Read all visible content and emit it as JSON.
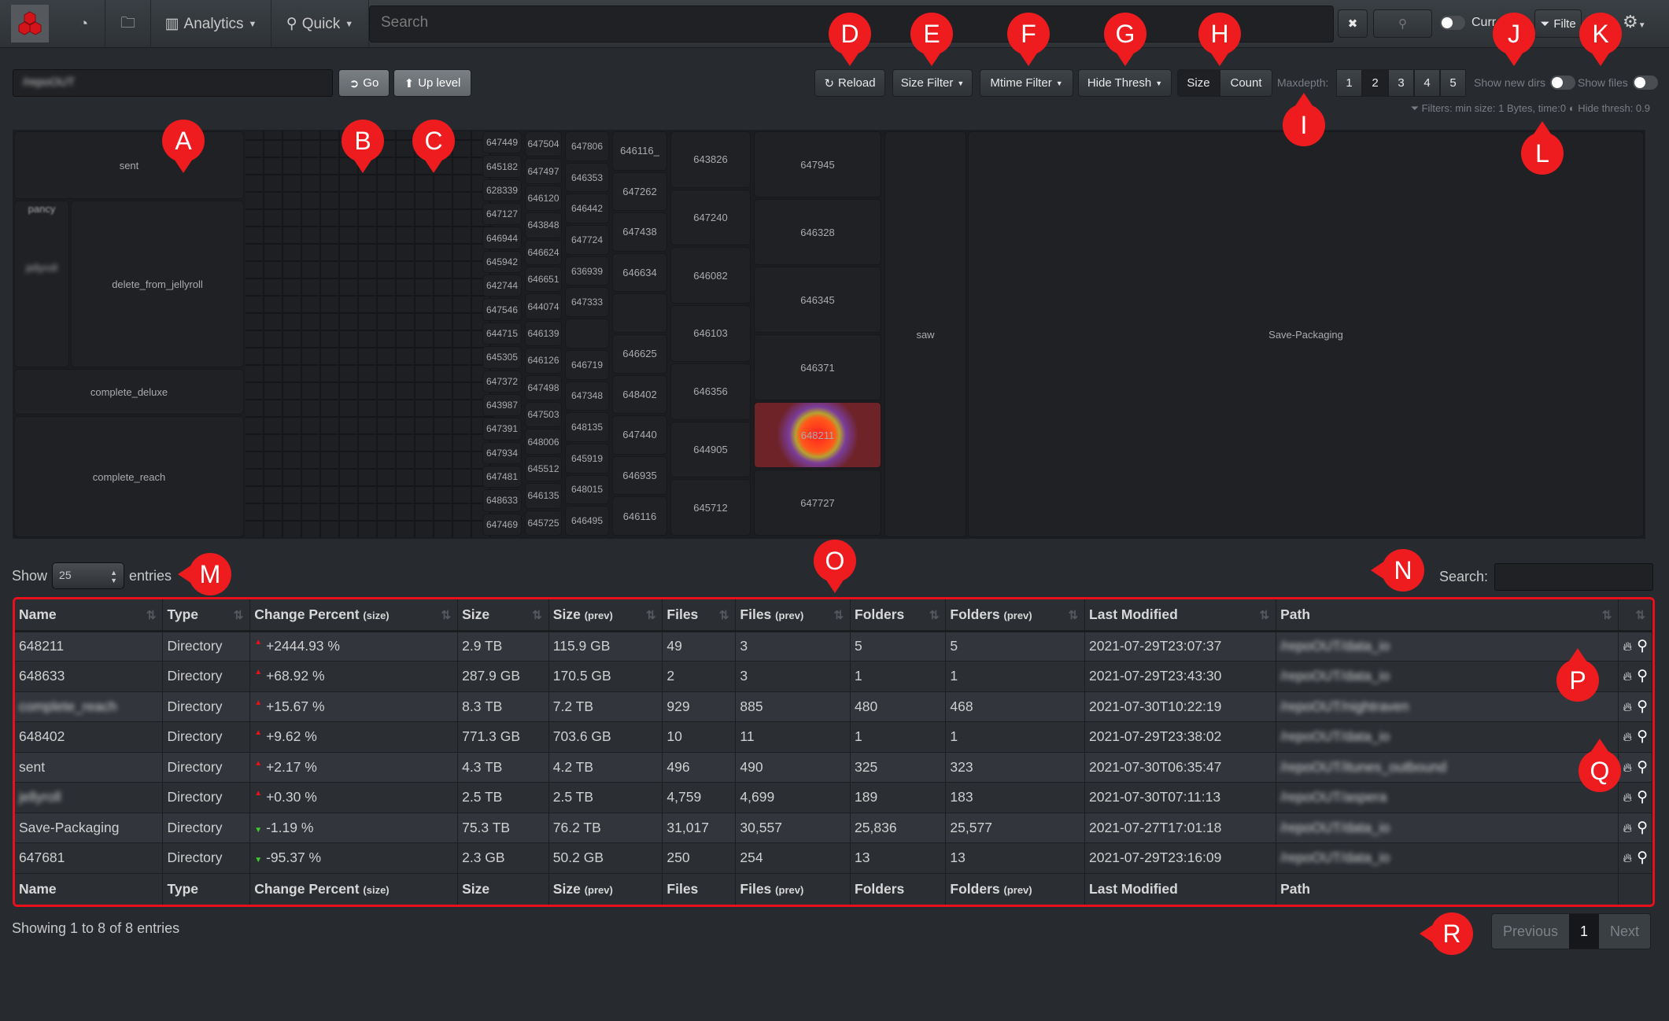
{
  "nav": {
    "analytics": "Analytics",
    "quick": "Quick",
    "search_placeholder": "Search",
    "current_label": "Curr",
    "filter_label": "Filte"
  },
  "toolbar": {
    "path_value": "/repoOUT",
    "go": "Go",
    "up_level": "Up level",
    "reload": "Reload",
    "size_filter": "Size Filter",
    "mtime_filter": "Mtime Filter",
    "hide_thresh": "Hide Thresh",
    "size": "Size",
    "count": "Count",
    "size_selected": true,
    "maxdepth_label": "Maxdepth:",
    "depths": [
      "1",
      "2",
      "3",
      "4",
      "5"
    ],
    "depth_selected": "2",
    "show_new_dirs": "Show new dirs",
    "show_files": "Show files",
    "filters_info": "Filters: min size: 1 Bytes, time:0",
    "hide_thresh_info": "Hide thresh: 0.9"
  },
  "treemap": {
    "left": {
      "sent": "sent",
      "pancy": "pancy",
      "jellyroll": "jellyroll",
      "delete_from": "delete_from_jellyroll",
      "complete_deluxe": "complete_deluxe",
      "complete_reach": "complete_reach"
    },
    "columns": [
      [
        "647449",
        "645182",
        "628339",
        "647127",
        "646944",
        "645942",
        "642744",
        "647546",
        "644715",
        "645305",
        "647372",
        "643987",
        "647391",
        "647934",
        "647481",
        "648633",
        "647469"
      ],
      [
        "647504",
        "647497",
        "646120",
        "643848",
        "646624",
        "646651",
        "644074",
        "646139",
        "646126",
        "647498",
        "647503",
        "648006",
        "645512",
        "646135",
        "645725"
      ],
      [
        "647806",
        "646353",
        "646442",
        "647724",
        "636939",
        "647333",
        "",
        "646719",
        "647348",
        "648135",
        "645919",
        "648015",
        "646495"
      ],
      [
        "646116_",
        "647262",
        "647438",
        "646634",
        "",
        "646625",
        "648402",
        "647440",
        "646935",
        "646116"
      ],
      [
        "643826",
        "647240",
        "646082",
        "646103",
        "646356",
        "644905",
        "645712"
      ],
      [
        "647945",
        "646328",
        "646345",
        "646371",
        "648211",
        "647727"
      ]
    ],
    "highlighted": "648211",
    "saw": "saw",
    "save_packaging": "Save-Packaging"
  },
  "table": {
    "show": "Show",
    "entries_value": "25",
    "entries": "entries",
    "search_label": "Search:",
    "headers": [
      {
        "t": "Name"
      },
      {
        "t": "Type"
      },
      {
        "t": "Change Percent",
        "s": "(size)"
      },
      {
        "t": "Size"
      },
      {
        "t": "Size",
        "s": "(prev)"
      },
      {
        "t": "Files"
      },
      {
        "t": "Files",
        "s": "(prev)"
      },
      {
        "t": "Folders"
      },
      {
        "t": "Folders",
        "s": "(prev)"
      },
      {
        "t": "Last Modified"
      },
      {
        "t": "Path"
      }
    ],
    "rows": [
      {
        "name": "648211",
        "type": "Directory",
        "dir": "up",
        "change": "+2444.93 %",
        "size": "2.9 TB",
        "size_prev": "115.9 GB",
        "files": "49",
        "files_prev": "3",
        "folders": "5",
        "folders_prev": "5",
        "modified": "2021-07-29T23:07:37",
        "path": "/repoOUT/data_io"
      },
      {
        "name": "648633",
        "type": "Directory",
        "dir": "up",
        "change": "+68.92 %",
        "size": "287.9 GB",
        "size_prev": "170.5 GB",
        "files": "2",
        "files_prev": "3",
        "folders": "1",
        "folders_prev": "1",
        "modified": "2021-07-29T23:43:30",
        "path": "/repoOUT/data_io"
      },
      {
        "name": "complete_reach",
        "blur": true,
        "type": "Directory",
        "dir": "up",
        "change": "+15.67 %",
        "size": "8.3 TB",
        "size_prev": "7.2 TB",
        "files": "929",
        "files_prev": "885",
        "folders": "480",
        "folders_prev": "468",
        "modified": "2021-07-30T10:22:19",
        "path": "/repoOUT/nightraven"
      },
      {
        "name": "648402",
        "type": "Directory",
        "dir": "up",
        "change": "+9.62 %",
        "size": "771.3 GB",
        "size_prev": "703.6 GB",
        "files": "10",
        "files_prev": "11",
        "folders": "1",
        "folders_prev": "1",
        "modified": "2021-07-29T23:38:02",
        "path": "/repoOUT/data_io"
      },
      {
        "name": "sent",
        "type": "Directory",
        "dir": "up",
        "change": "+2.17 %",
        "size": "4.3 TB",
        "size_prev": "4.2 TB",
        "files": "496",
        "files_prev": "490",
        "folders": "325",
        "folders_prev": "323",
        "modified": "2021-07-30T06:35:47",
        "path": "/repoOUT/itunes_outbound"
      },
      {
        "name": "jellyroll",
        "blur": true,
        "type": "Directory",
        "dir": "up",
        "change": "+0.30 %",
        "size": "2.5 TB",
        "size_prev": "2.5 TB",
        "files": "4,759",
        "files_prev": "4,699",
        "folders": "189",
        "folders_prev": "183",
        "modified": "2021-07-30T07:11:13",
        "path": "/repoOUT/aspera"
      },
      {
        "name": "Save-Packaging",
        "type": "Directory",
        "dir": "down",
        "change": "-1.19 %",
        "size": "75.3 TB",
        "size_prev": "76.2 TB",
        "files": "31,017",
        "files_prev": "30,557",
        "folders": "25,836",
        "folders_prev": "25,577",
        "modified": "2021-07-27T17:01:18",
        "path": "/repoOUT/data_io"
      },
      {
        "name": "647681",
        "type": "Directory",
        "dir": "down",
        "change": "-95.37 %",
        "size": "2.3 GB",
        "size_prev": "50.2 GB",
        "files": "250",
        "files_prev": "254",
        "folders": "13",
        "folders_prev": "13",
        "modified": "2021-07-29T23:16:09",
        "path": "/repoOUT/data_io"
      }
    ],
    "info": "Showing 1 to 8 of 8 entries",
    "pager": {
      "previous": "Previous",
      "page": "1",
      "next": "Next"
    }
  },
  "annotations": [
    "A",
    "B",
    "C",
    "D",
    "E",
    "F",
    "G",
    "H",
    "I",
    "J",
    "K",
    "L",
    "M",
    "N",
    "O",
    "P",
    "Q",
    "R"
  ],
  "colors": {
    "accent_red": "#e8101a",
    "increase": "#e8101a",
    "decrease": "#3ccf2a",
    "hot_cell": "#6e2329"
  }
}
